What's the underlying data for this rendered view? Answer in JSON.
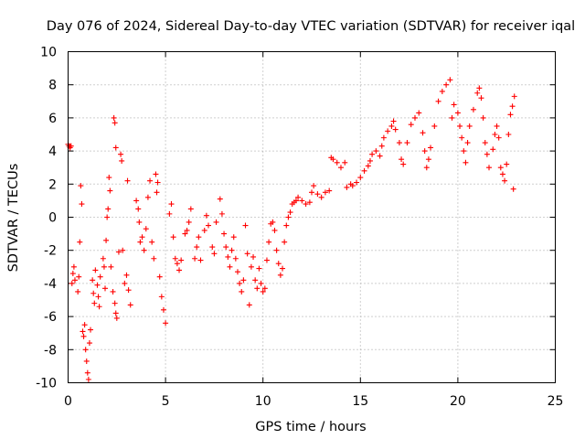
{
  "chart_data": {
    "type": "scatter",
    "title": "Day 076 of 2024, Sidereal Day-to-day VTEC variation (SDTVAR) for receiver iqal",
    "xlabel": "GPS time / hours",
    "ylabel": "SDTVAR / TECUs",
    "xlim": [
      0,
      25
    ],
    "ylim": [
      -10,
      10
    ],
    "xticks": [
      "0",
      "5",
      "10",
      "15",
      "20",
      "25"
    ],
    "yticks": [
      "-10",
      "-8",
      "-6",
      "-4",
      "-2",
      "0",
      "2",
      "4",
      "6",
      "8",
      "10"
    ],
    "grid": true,
    "marker": "+",
    "color": "#ff0000",
    "series": [
      {
        "name": "iqal",
        "points": [
          [
            0.0,
            4.4
          ],
          [
            0.05,
            4.3
          ],
          [
            0.1,
            4.2
          ],
          [
            0.15,
            4.3
          ],
          [
            0.2,
            -4.0
          ],
          [
            0.25,
            -3.4
          ],
          [
            0.3,
            -3.0
          ],
          [
            0.35,
            -3.8
          ],
          [
            0.5,
            -4.5
          ],
          [
            0.55,
            -3.6
          ],
          [
            0.6,
            -1.5
          ],
          [
            0.65,
            1.9
          ],
          [
            0.7,
            0.8
          ],
          [
            0.75,
            -6.9
          ],
          [
            0.8,
            -7.2
          ],
          [
            0.85,
            -6.5
          ],
          [
            0.9,
            -8.0
          ],
          [
            0.95,
            -8.7
          ],
          [
            1.0,
            -9.4
          ],
          [
            1.05,
            -9.8
          ],
          [
            1.1,
            -7.6
          ],
          [
            1.15,
            -6.8
          ],
          [
            1.25,
            -3.8
          ],
          [
            1.3,
            -4.6
          ],
          [
            1.35,
            -5.2
          ],
          [
            1.4,
            -3.2
          ],
          [
            1.5,
            -4.1
          ],
          [
            1.55,
            -4.8
          ],
          [
            1.6,
            -5.4
          ],
          [
            1.65,
            -3.6
          ],
          [
            1.8,
            -2.5
          ],
          [
            1.85,
            -3.0
          ],
          [
            1.9,
            -4.3
          ],
          [
            1.95,
            -1.4
          ],
          [
            2.0,
            0.0
          ],
          [
            2.05,
            0.5
          ],
          [
            2.1,
            2.4
          ],
          [
            2.15,
            1.6
          ],
          [
            2.2,
            -3.0
          ],
          [
            2.3,
            -4.5
          ],
          [
            2.4,
            -5.2
          ],
          [
            2.45,
            -5.8
          ],
          [
            2.5,
            -6.1
          ],
          [
            2.35,
            6.0
          ],
          [
            2.4,
            5.7
          ],
          [
            2.45,
            4.2
          ],
          [
            2.6,
            -2.1
          ],
          [
            2.7,
            3.8
          ],
          [
            2.75,
            3.4
          ],
          [
            2.8,
            -2.0
          ],
          [
            2.9,
            -4.0
          ],
          [
            3.0,
            -3.5
          ],
          [
            3.05,
            2.2
          ],
          [
            3.1,
            -4.4
          ],
          [
            3.2,
            -5.3
          ],
          [
            3.5,
            1.0
          ],
          [
            3.6,
            0.5
          ],
          [
            3.65,
            -0.3
          ],
          [
            3.7,
            -1.5
          ],
          [
            3.8,
            -1.2
          ],
          [
            3.9,
            -2.0
          ],
          [
            4.0,
            -0.7
          ],
          [
            4.1,
            1.2
          ],
          [
            4.2,
            2.2
          ],
          [
            4.3,
            -1.5
          ],
          [
            4.4,
            -2.5
          ],
          [
            4.5,
            2.6
          ],
          [
            4.55,
            1.5
          ],
          [
            4.6,
            2.1
          ],
          [
            4.7,
            -3.6
          ],
          [
            4.8,
            -4.8
          ],
          [
            4.9,
            -5.6
          ],
          [
            5.0,
            -6.4
          ],
          [
            5.2,
            0.2
          ],
          [
            5.3,
            0.8
          ],
          [
            5.4,
            -1.2
          ],
          [
            5.5,
            -2.5
          ],
          [
            5.6,
            -2.8
          ],
          [
            5.7,
            -3.2
          ],
          [
            5.8,
            -2.6
          ],
          [
            6.0,
            -1.0
          ],
          [
            6.1,
            -0.8
          ],
          [
            6.2,
            -0.3
          ],
          [
            6.3,
            0.5
          ],
          [
            6.5,
            -2.5
          ],
          [
            6.6,
            -1.8
          ],
          [
            6.7,
            -1.2
          ],
          [
            6.8,
            -2.6
          ],
          [
            7.0,
            -0.8
          ],
          [
            7.1,
            0.1
          ],
          [
            7.2,
            -0.5
          ],
          [
            7.4,
            -1.8
          ],
          [
            7.5,
            -2.2
          ],
          [
            7.6,
            -0.3
          ],
          [
            7.8,
            1.1
          ],
          [
            7.9,
            0.2
          ],
          [
            8.0,
            -1.0
          ],
          [
            8.1,
            -1.8
          ],
          [
            8.2,
            -2.4
          ],
          [
            8.3,
            -3.0
          ],
          [
            8.4,
            -2.0
          ],
          [
            8.5,
            -1.2
          ],
          [
            8.6,
            -2.5
          ],
          [
            8.7,
            -3.3
          ],
          [
            8.8,
            -4.0
          ],
          [
            8.9,
            -4.5
          ],
          [
            9.0,
            -3.8
          ],
          [
            9.1,
            -0.5
          ],
          [
            9.2,
            -2.2
          ],
          [
            9.3,
            -5.3
          ],
          [
            9.4,
            -3.0
          ],
          [
            9.5,
            -2.4
          ],
          [
            9.6,
            -3.8
          ],
          [
            9.7,
            -4.3
          ],
          [
            9.8,
            -3.1
          ],
          [
            9.9,
            -4.0
          ],
          [
            10.0,
            -4.5
          ],
          [
            10.1,
            -4.3
          ],
          [
            10.2,
            -2.6
          ],
          [
            10.3,
            -1.5
          ],
          [
            10.4,
            -0.4
          ],
          [
            10.5,
            -0.3
          ],
          [
            10.6,
            -0.8
          ],
          [
            10.7,
            -2.0
          ],
          [
            10.8,
            -2.8
          ],
          [
            10.9,
            -3.5
          ],
          [
            11.0,
            -3.1
          ],
          [
            11.1,
            -1.5
          ],
          [
            11.2,
            -0.5
          ],
          [
            11.3,
            0.0
          ],
          [
            11.4,
            0.3
          ],
          [
            11.5,
            0.8
          ],
          [
            11.6,
            0.9
          ],
          [
            11.7,
            1.0
          ],
          [
            11.8,
            1.2
          ],
          [
            12.0,
            1.0
          ],
          [
            12.2,
            0.8
          ],
          [
            12.4,
            0.9
          ],
          [
            12.5,
            1.5
          ],
          [
            12.6,
            1.9
          ],
          [
            12.8,
            1.4
          ],
          [
            13.0,
            1.2
          ],
          [
            13.2,
            1.5
          ],
          [
            13.4,
            1.6
          ],
          [
            13.5,
            3.6
          ],
          [
            13.6,
            3.5
          ],
          [
            13.8,
            3.3
          ],
          [
            14.0,
            3.0
          ],
          [
            14.2,
            3.3
          ],
          [
            14.3,
            1.8
          ],
          [
            14.5,
            2.0
          ],
          [
            14.6,
            1.9
          ],
          [
            14.8,
            2.1
          ],
          [
            15.0,
            2.4
          ],
          [
            15.2,
            2.8
          ],
          [
            15.4,
            3.1
          ],
          [
            15.5,
            3.4
          ],
          [
            15.6,
            3.8
          ],
          [
            15.8,
            4.0
          ],
          [
            16.0,
            3.7
          ],
          [
            16.1,
            4.3
          ],
          [
            16.2,
            4.8
          ],
          [
            16.4,
            5.2
          ],
          [
            16.6,
            5.5
          ],
          [
            16.7,
            5.8
          ],
          [
            16.8,
            5.3
          ],
          [
            17.0,
            4.5
          ],
          [
            17.1,
            3.5
          ],
          [
            17.2,
            3.2
          ],
          [
            17.4,
            4.5
          ],
          [
            17.6,
            5.6
          ],
          [
            17.8,
            6.0
          ],
          [
            18.0,
            6.3
          ],
          [
            18.2,
            5.1
          ],
          [
            18.3,
            4.0
          ],
          [
            18.4,
            3.0
          ],
          [
            18.5,
            3.5
          ],
          [
            18.6,
            4.2
          ],
          [
            18.8,
            5.5
          ],
          [
            19.0,
            7.0
          ],
          [
            19.2,
            7.6
          ],
          [
            19.4,
            8.0
          ],
          [
            19.6,
            8.3
          ],
          [
            19.7,
            6.0
          ],
          [
            19.8,
            6.8
          ],
          [
            20.0,
            6.3
          ],
          [
            20.1,
            5.5
          ],
          [
            20.2,
            4.8
          ],
          [
            20.3,
            4.0
          ],
          [
            20.4,
            3.3
          ],
          [
            20.5,
            4.5
          ],
          [
            20.6,
            5.5
          ],
          [
            20.8,
            6.5
          ],
          [
            21.0,
            7.5
          ],
          [
            21.1,
            7.8
          ],
          [
            21.2,
            7.2
          ],
          [
            21.3,
            6.0
          ],
          [
            21.4,
            4.5
          ],
          [
            21.5,
            3.8
          ],
          [
            21.6,
            3.0
          ],
          [
            21.8,
            4.1
          ],
          [
            21.9,
            5.0
          ],
          [
            22.0,
            5.5
          ],
          [
            22.1,
            4.8
          ],
          [
            22.2,
            3.0
          ],
          [
            22.3,
            2.6
          ],
          [
            22.4,
            2.2
          ],
          [
            22.5,
            3.2
          ],
          [
            22.6,
            5.0
          ],
          [
            22.7,
            6.2
          ],
          [
            22.8,
            6.7
          ],
          [
            22.9,
            7.3
          ],
          [
            22.85,
            1.7
          ]
        ]
      }
    ]
  }
}
